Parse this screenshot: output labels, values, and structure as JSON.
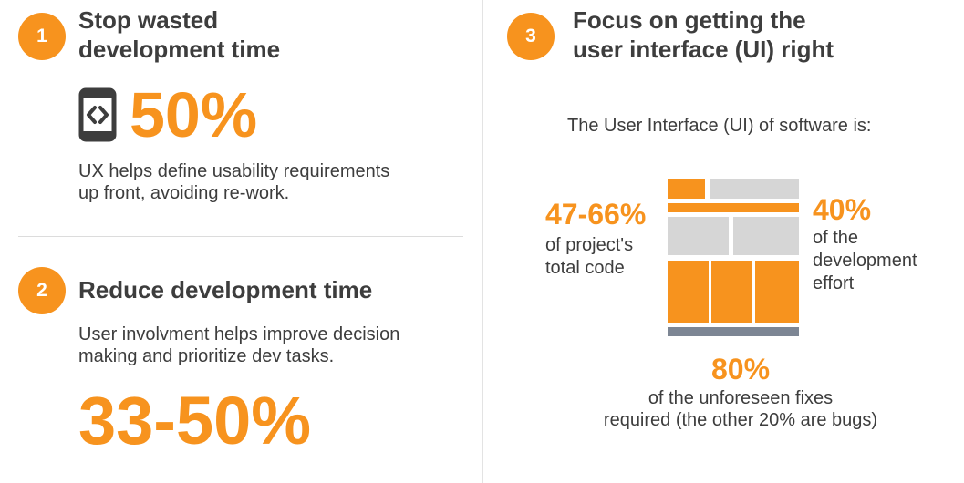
{
  "colors": {
    "accent": "#f7931e",
    "text": "#3d3d3d",
    "gray_block": "#d6d6d6",
    "base_bar": "#7d8694"
  },
  "section1": {
    "number": "1",
    "title_line1": "Stop wasted",
    "title_line2": "development time",
    "icon": "code-phone-icon",
    "stat": "50%",
    "desc_line1": "UX helps define usability requirements",
    "desc_line2": "up front, avoiding re-work."
  },
  "section2": {
    "number": "2",
    "title": "Reduce development time",
    "desc_line1": "User involvment helps improve decision",
    "desc_line2": "making and prioritize dev tasks.",
    "stat": "33-50%"
  },
  "section3": {
    "number": "3",
    "title_line1": "Focus on getting the",
    "title_line2": "user interface (UI) right",
    "intro": "The User Interface (UI) of software is:",
    "stat_code": {
      "value": "47-66%",
      "line1": "of project's",
      "line2": "total code"
    },
    "stat_effort": {
      "value": "40%",
      "line1": "of the",
      "line2": "development",
      "line3": "effort"
    },
    "stat_fixes": {
      "value": "80%",
      "line1": "of the unforeseen fixes",
      "line2": "required (the other 20% are bugs)"
    }
  }
}
